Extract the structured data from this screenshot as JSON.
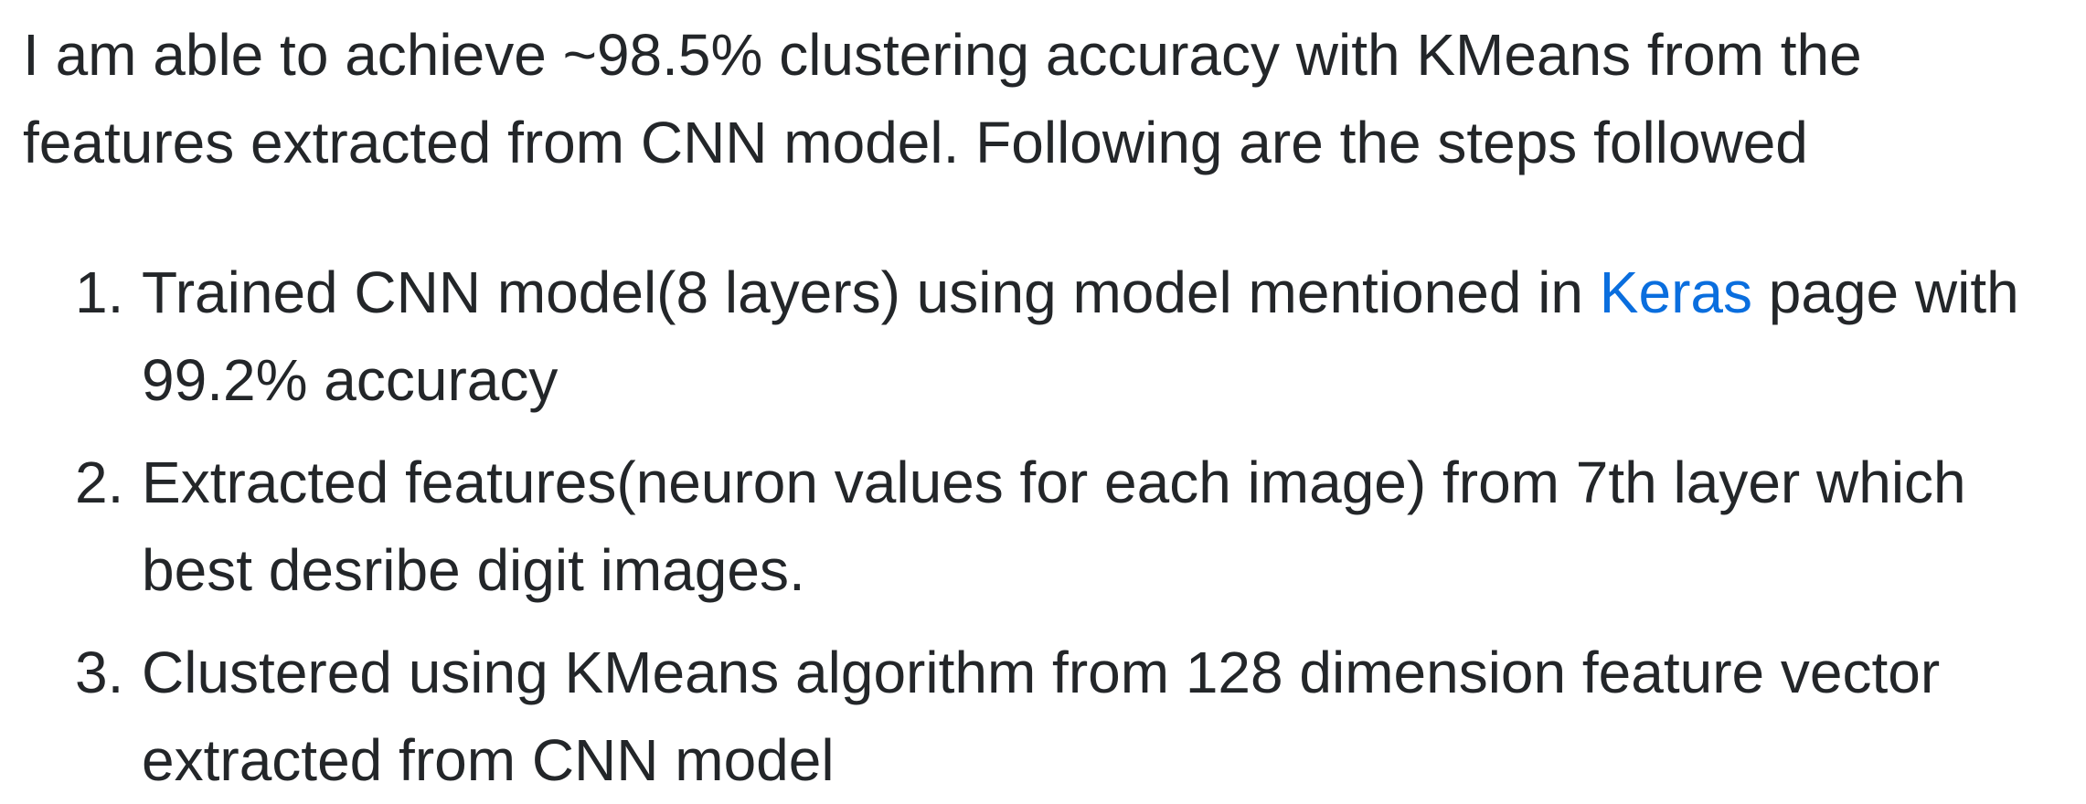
{
  "intro": {
    "line1": "I am able to achieve ~98.5% clustering accuracy with KMeans from the",
    "line2": "features extracted from CNN model. Following are the steps followed"
  },
  "steps": [
    {
      "number": "1.",
      "before_link": "Trained CNN model(8 layers) using model mentioned in ",
      "link_text": "Keras",
      "after_link": " page with",
      "line2": "99.2% accuracy"
    },
    {
      "number": "2.",
      "line1": "Extracted features(neuron values for each image) from 7th layer which",
      "line2": "best desribe digit images."
    },
    {
      "number": "3.",
      "line1": "Clustered using KMeans algorithm from 128 dimension feature vector",
      "line2": "extracted from CNN model"
    }
  ],
  "colors": {
    "text": "#232629",
    "link": "#0a6ede",
    "background": "#ffffff"
  }
}
